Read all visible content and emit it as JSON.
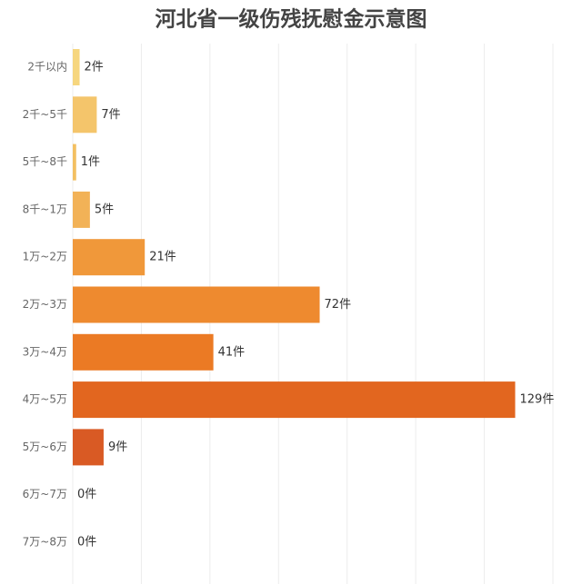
{
  "chart_data": {
    "type": "hbar",
    "title": "河北省一级伤残抚慰金示意图",
    "categories": [
      "2千以内",
      "2千~5千",
      "5千~8千",
      "8千~1万",
      "1万~2万",
      "2万~3万",
      "3万~4万",
      "4万~5万",
      "5万~6万",
      "6万~7万",
      "7万~8万"
    ],
    "values": [
      2,
      7,
      1,
      5,
      21,
      72,
      41,
      129,
      9,
      0,
      0
    ],
    "value_labels": [
      "2件",
      "7件",
      "1件",
      "5件",
      "21件",
      "72件",
      "41件",
      "129件",
      "9件",
      "0件",
      "0件"
    ],
    "colors": [
      "#f6d67e",
      "#f4c56b",
      "#f3c062",
      "#f2b257",
      "#f0983a",
      "#ee8a2f",
      "#eb7a24",
      "#e2661f",
      "#d95a24",
      "#d95a24",
      "#d95a24"
    ],
    "xlim": [
      0,
      140
    ],
    "xticks": [
      0,
      20,
      40,
      60,
      80,
      100,
      120,
      140
    ],
    "grid": true
  }
}
